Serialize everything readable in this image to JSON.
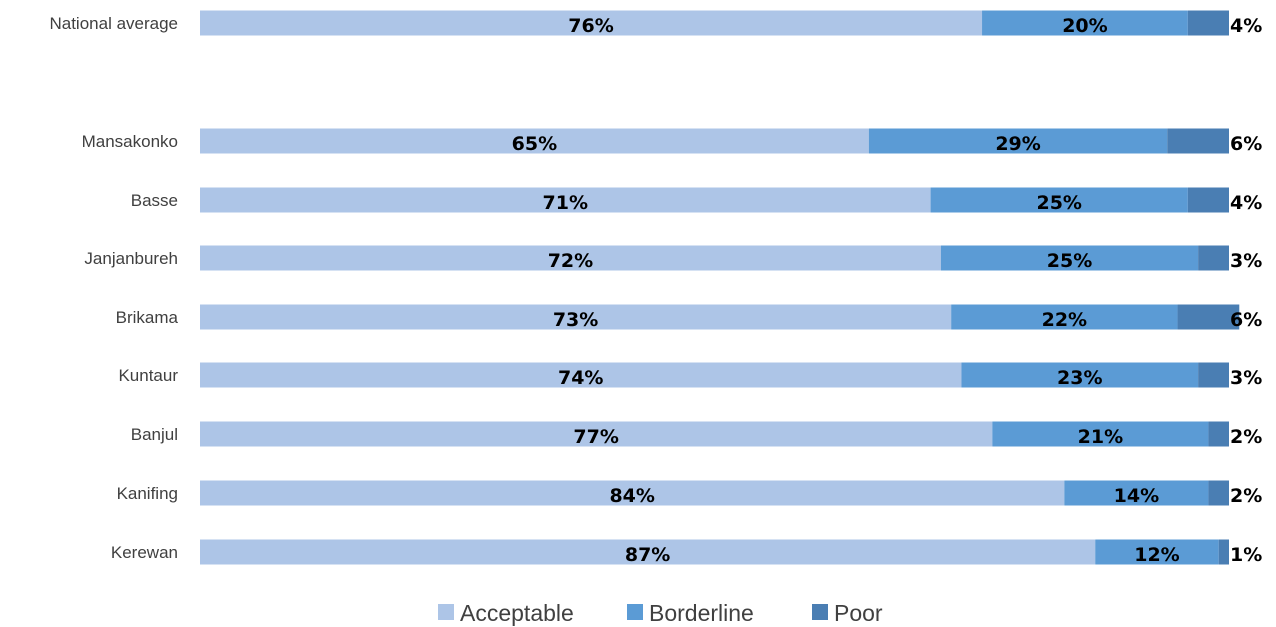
{
  "chart_data": {
    "type": "bar",
    "orientation": "horizontal",
    "stacked": true,
    "percent": true,
    "categories": [
      "National average",
      "Mansakonko",
      "Basse",
      "Janjanbureh",
      "Brikama",
      "Kuntaur",
      "Banjul",
      "Kanifing",
      "Kerewan"
    ],
    "series": [
      {
        "name": "Acceptable",
        "color": "#adc5e7",
        "values": [
          76,
          65,
          71,
          72,
          73,
          74,
          77,
          84,
          87
        ],
        "labels": [
          "76%",
          "65%",
          "71%",
          "72%",
          "73%",
          "74%",
          "77%",
          "84%",
          "87%"
        ]
      },
      {
        "name": "Borderline",
        "color": "#5b9bd5",
        "values": [
          20,
          29,
          25,
          25,
          22,
          23,
          21,
          14,
          12
        ],
        "labels": [
          "20%",
          "29%",
          "25%",
          "25%",
          "22%",
          "23%",
          "21%",
          "14%",
          "12%"
        ]
      },
      {
        "name": "Poor",
        "color": "#4a7eb3",
        "values": [
          4,
          6,
          4,
          3,
          6,
          3,
          2,
          2,
          1
        ],
        "labels": [
          "4%",
          "6%",
          "4%",
          "3%",
          "6%",
          "3%",
          "2%",
          "2%",
          "1%"
        ]
      }
    ],
    "xlim": [
      0,
      100
    ],
    "grid": false,
    "legend": "bottom",
    "title": "",
    "xlabel": "",
    "ylabel": ""
  }
}
